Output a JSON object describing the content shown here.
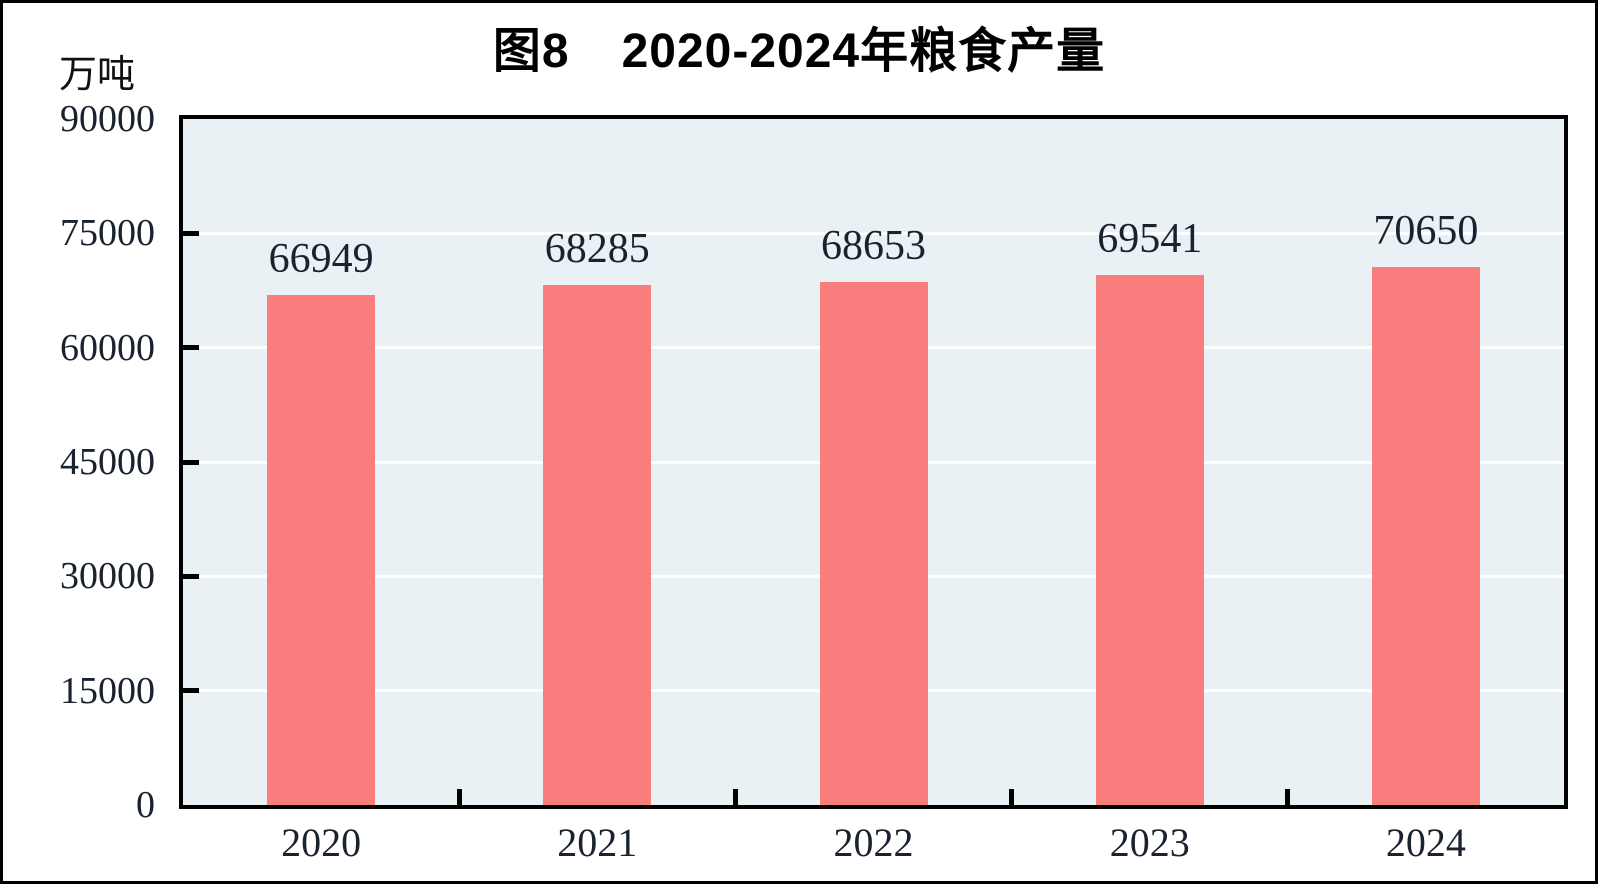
{
  "title": {
    "prefix": "图8",
    "main": "2020-2024年粮食产量",
    "full": "图8 2020-2024年粮食产量"
  },
  "chart_data": {
    "type": "bar",
    "title": "图8 2020-2024年粮食产量",
    "unit": "万吨",
    "ylabel": "万吨",
    "xlabel": "",
    "categories": [
      "2020",
      "2021",
      "2022",
      "2023",
      "2024"
    ],
    "values": [
      66949,
      68285,
      68653,
      69541,
      70650
    ],
    "ylim": [
      0,
      90000
    ],
    "yticks": [
      0,
      15000,
      30000,
      45000,
      60000,
      75000,
      90000
    ],
    "grid": "horizontal",
    "gridline_style": "white solid lines at each y tick",
    "legend": "none",
    "data_labels": true,
    "colors": {
      "bar": "#F97D7D",
      "plot_bg": "#E9F1F5",
      "gridline": "#FFFFFF",
      "axis": "#000000",
      "text": "#1A2230"
    }
  }
}
